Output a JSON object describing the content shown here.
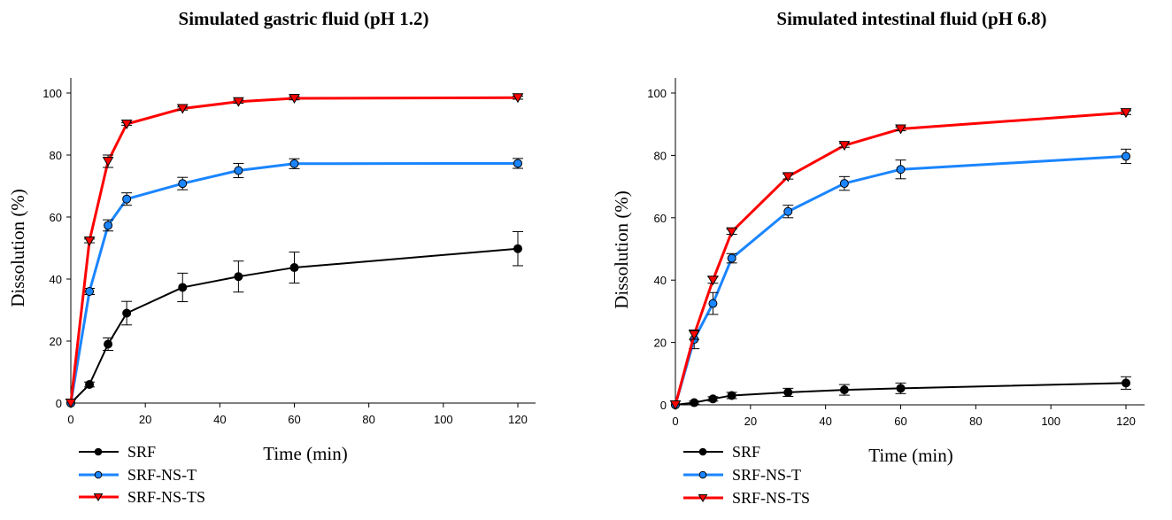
{
  "chart_data": [
    {
      "type": "line",
      "title": "Simulated gastric fluid (pH 1.2)",
      "xlabel": "Time (min)",
      "ylabel": "Dissolution (%)",
      "xlim": [
        0,
        125
      ],
      "ylim": [
        0,
        105
      ],
      "xticks": [
        0,
        20,
        40,
        60,
        80,
        100,
        120
      ],
      "yticks": [
        0,
        20,
        40,
        60,
        80,
        100
      ],
      "grid": false,
      "legend_position": "bottom-left",
      "x": [
        0,
        5,
        10,
        15,
        30,
        45,
        60,
        120
      ],
      "series": [
        {
          "name": "SRF",
          "color": "#000000",
          "marker": "circle",
          "values": [
            0,
            6,
            19,
            29,
            37.3,
            40.8,
            43.7,
            49.8
          ],
          "errors": [
            0,
            0.8,
            2,
            3.8,
            4.6,
            5,
            5,
            5.5
          ]
        },
        {
          "name": "SRF-NS-T",
          "color": "#1a85ff",
          "marker": "circle",
          "values": [
            0,
            36,
            57.3,
            65.8,
            70.8,
            75,
            77.2,
            77.3
          ],
          "errors": [
            0,
            1,
            1.8,
            2,
            2,
            2.3,
            1.6,
            1.6
          ]
        },
        {
          "name": "SRF-NS-TS",
          "color": "#ff0000",
          "marker": "triangle-down",
          "values": [
            0,
            52.3,
            78,
            90,
            95,
            97.2,
            98.3,
            98.5
          ],
          "errors": [
            0,
            0.6,
            2,
            0.4,
            0.5,
            0.5,
            0.5,
            0.5
          ]
        }
      ]
    },
    {
      "type": "line",
      "title": "Simulated intestinal fluid (pH 6.8)",
      "xlabel": "Time (min)",
      "ylabel": "Dissolution (%)",
      "xlim": [
        0,
        125
      ],
      "ylim": [
        0,
        105
      ],
      "xticks": [
        0,
        20,
        40,
        60,
        80,
        100,
        120
      ],
      "yticks": [
        0,
        20,
        40,
        60,
        80,
        100
      ],
      "grid": false,
      "legend_position": "bottom-left",
      "x": [
        0,
        5,
        10,
        15,
        30,
        45,
        60,
        120
      ],
      "series": [
        {
          "name": "SRF",
          "color": "#000000",
          "marker": "circle",
          "values": [
            0,
            0.7,
            1.9,
            3,
            4,
            4.8,
            5.3,
            7
          ],
          "errors": [
            0,
            0.5,
            0.7,
            1,
            1.3,
            1.7,
            1.7,
            2
          ]
        },
        {
          "name": "SRF-NS-T",
          "color": "#1a85ff",
          "marker": "circle",
          "values": [
            0,
            21,
            32.5,
            47,
            62,
            71,
            75.5,
            79.7
          ],
          "errors": [
            0,
            3,
            3.5,
            1.5,
            2,
            2.2,
            3,
            2.3
          ]
        },
        {
          "name": "SRF-NS-TS",
          "color": "#ff0000",
          "marker": "triangle-down",
          "values": [
            0,
            22.5,
            40,
            55.5,
            73.2,
            83.2,
            88.5,
            93.7
          ],
          "errors": [
            0,
            1.5,
            1,
            0.8,
            0.8,
            0.6,
            0.6,
            0.6
          ]
        }
      ]
    }
  ]
}
